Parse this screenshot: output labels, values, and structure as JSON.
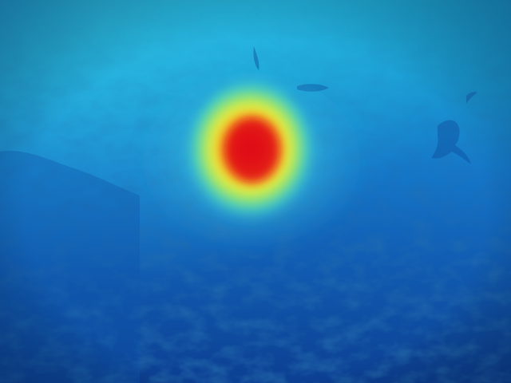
{
  "image": {
    "kind": "underwater photo with attention heatmap overlay",
    "palette": {
      "water_top": "#1aa6d6",
      "water_mid": "#1476c4",
      "seabed": "#0b3a8a",
      "heat_low": "#3fd3c6",
      "heat_mid": "#e9ef3a",
      "heat_high": "#f08a1a",
      "heat_peak": "#e30f12"
    }
  }
}
